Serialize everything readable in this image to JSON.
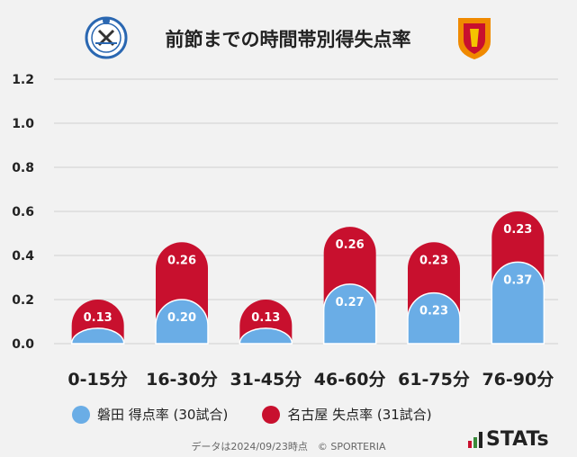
{
  "title": "前節までの時間帯別得失点率",
  "colors": {
    "home": "#6aade6",
    "away": "#c8102e",
    "grid": "#d0d0d0",
    "background": "#f2f2f2"
  },
  "chart_data": {
    "type": "bar",
    "categories": [
      "0-15分",
      "16-30分",
      "31-45分",
      "46-60分",
      "61-75分",
      "76-90分"
    ],
    "series": [
      {
        "name": "磐田 得点率 (30試合)",
        "values": [
          0.07,
          0.2,
          0.07,
          0.27,
          0.23,
          0.37
        ],
        "labels": [
          "",
          "0.20",
          "",
          "0.27",
          "0.23",
          "0.37"
        ]
      },
      {
        "name": "名古屋 失点率 (31試合)",
        "values": [
          0.13,
          0.26,
          0.13,
          0.26,
          0.23,
          0.23
        ],
        "labels": [
          "0.13",
          "0.26",
          "0.13",
          "0.26",
          "0.23",
          "0.23"
        ]
      }
    ],
    "y_ticks": [
      "1.2",
      "1.0",
      "0.8",
      "0.6",
      "0.4",
      "0.2",
      "0.0"
    ],
    "ylim": [
      0,
      1.2
    ],
    "grid": true,
    "stacked": true
  },
  "legend": {
    "home": "磐田 得点率 (30試合)",
    "away": "名古屋 失点率 (31試合)"
  },
  "footer": "データは2024/09/23時点　© SPORTERIA",
  "brand": "STATs",
  "icons": {
    "home_logo": "jubilo-crest-icon",
    "away_logo": "grampus-crest-icon"
  }
}
